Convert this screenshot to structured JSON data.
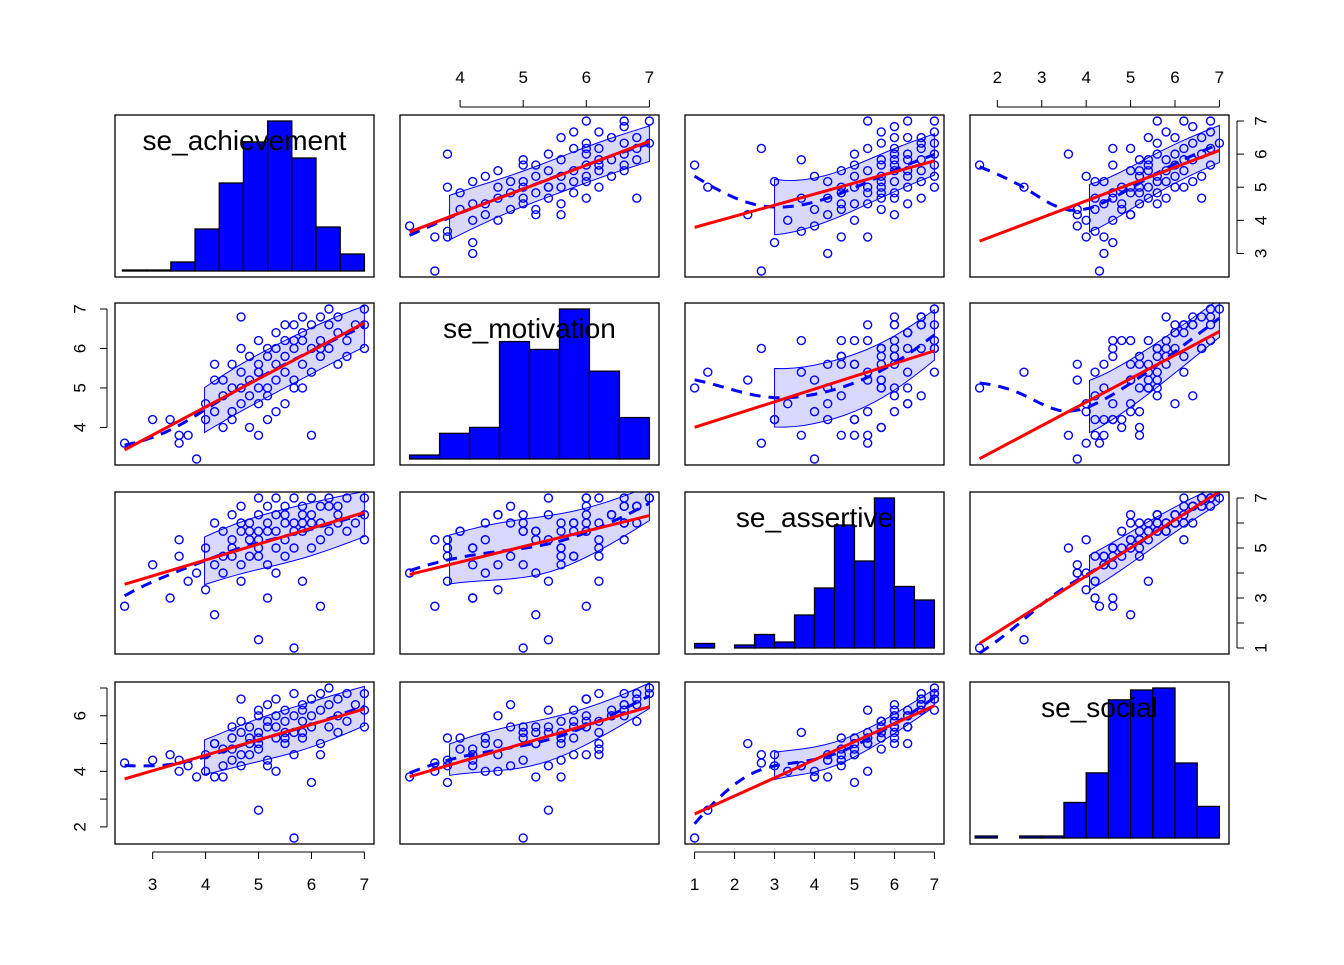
{
  "chart_data": {
    "type": "scatter",
    "title": "",
    "variables": [
      {
        "name": "se_achievement",
        "range": [
          2.47,
          7.0
        ]
      },
      {
        "name": "se_motivation",
        "range": [
          3.2,
          7.0
        ]
      },
      {
        "name": "se_assertive",
        "range": [
          1.0,
          7.0
        ]
      },
      {
        "name": "se_social",
        "range": [
          1.6,
          7.0
        ]
      }
    ],
    "axes": {
      "top": [
        {
          "col": 1,
          "ticks": [
            4,
            5,
            6,
            7
          ],
          "labels": [
            "4",
            "5",
            "6",
            "7"
          ]
        },
        {
          "col": 3,
          "ticks": [
            2,
            3,
            4,
            5,
            6,
            7
          ],
          "labels": [
            "2",
            "3",
            "4",
            "5",
            "6",
            "7"
          ]
        }
      ],
      "bottom": [
        {
          "col": 0,
          "ticks": [
            3,
            4,
            5,
            6,
            7
          ],
          "labels": [
            "3",
            "4",
            "5",
            "6",
            "7"
          ]
        },
        {
          "col": 2,
          "ticks": [
            1,
            2,
            3,
            4,
            5,
            6,
            7
          ],
          "labels": [
            "1",
            "2",
            "3",
            "4",
            "5",
            "6",
            "7"
          ]
        }
      ],
      "left": [
        {
          "row": 1,
          "ticks": [
            4,
            5,
            6,
            7
          ],
          "labels": [
            "4",
            "5",
            "6",
            "7"
          ]
        },
        {
          "row": 3,
          "ticks": [
            2,
            3,
            4,
            5,
            6,
            7
          ],
          "labels": [
            "2",
            "",
            "4",
            "",
            "6",
            ""
          ]
        }
      ],
      "right": [
        {
          "row": 0,
          "ticks": [
            3,
            4,
            5,
            6,
            7
          ],
          "labels": [
            "3",
            "4",
            "5",
            "6",
            "7"
          ]
        },
        {
          "row": 2,
          "ticks": [
            1,
            2,
            3,
            4,
            5,
            6,
            7
          ],
          "labels": [
            "1",
            "",
            "3",
            "",
            "5",
            "",
            "7"
          ]
        }
      ]
    },
    "histograms": [
      {
        "variable": "se_achievement",
        "edges": [
          2.43,
          7.0
        ],
        "counts": [
          1,
          1,
          9,
          42,
          88,
          129,
          150,
          113,
          44,
          17
        ]
      },
      {
        "variable": "se_motivation",
        "edges": [
          3.2,
          7.0
        ],
        "counts": [
          4,
          26,
          32,
          119,
          111,
          152,
          89,
          42
        ]
      },
      {
        "variable": "se_assertive",
        "edges": [
          1.0,
          7.0
        ],
        "counts": [
          3,
          0,
          2,
          9,
          4,
          22,
          40,
          82,
          58,
          100,
          41,
          32
        ]
      },
      {
        "variable": "se_social",
        "edges": [
          1.5,
          7.0
        ],
        "counts": [
          1,
          0,
          1,
          1,
          18,
          33,
          70,
          75,
          76,
          38,
          16
        ]
      }
    ],
    "fits": {
      "linear": "red solid",
      "smooth": "blue dashed with shaded spread band"
    },
    "colors": {
      "points": "#0000ff",
      "linear": "#ff0000",
      "smooth": "#0000ff",
      "band": "#0000ff",
      "hist": "#0000ff"
    },
    "observations": [
      [
        2.47,
        3.6,
        2.67,
        4.3
      ],
      [
        5.67,
        5.0,
        1.0,
        1.6
      ],
      [
        5.0,
        5.4,
        1.33,
        2.6
      ],
      [
        3.33,
        4.2,
        3.0,
        4.6
      ],
      [
        3.5,
        3.6,
        5.33,
        4.0
      ],
      [
        3.5,
        3.8,
        4.67,
        4.4
      ],
      [
        3.67,
        3.8,
        3.67,
        4.2
      ],
      [
        3.0,
        4.2,
        4.33,
        4.4
      ],
      [
        3.83,
        3.2,
        4.0,
        3.8
      ],
      [
        4.0,
        4.6,
        3.33,
        4.0
      ],
      [
        4.0,
        4.2,
        5.0,
        4.6
      ],
      [
        4.17,
        4.4,
        6.0,
        5.0
      ],
      [
        4.17,
        5.2,
        2.33,
        5.0
      ],
      [
        4.33,
        4.8,
        4.67,
        4.2
      ],
      [
        4.33,
        4.0,
        5.67,
        4.8
      ],
      [
        4.33,
        5.2,
        4.0,
        3.8
      ],
      [
        4.5,
        4.4,
        5.33,
        5.2
      ],
      [
        4.5,
        5.6,
        4.67,
        4.4
      ],
      [
        4.5,
        5.0,
        6.33,
        5.6
      ],
      [
        4.5,
        4.2,
        5.0,
        4.8
      ],
      [
        4.67,
        5.0,
        5.67,
        5.4
      ],
      [
        4.67,
        4.6,
        4.33,
        4.6
      ],
      [
        4.67,
        5.4,
        3.67,
        4.2
      ],
      [
        4.67,
        6.8,
        6.0,
        5.8
      ],
      [
        4.83,
        5.2,
        5.33,
        5.0
      ],
      [
        4.83,
        4.8,
        6.0,
        5.6
      ],
      [
        4.83,
        5.8,
        4.67,
        4.6
      ],
      [
        4.83,
        4.0,
        5.67,
        5.2
      ],
      [
        5.0,
        5.6,
        5.0,
        5.0
      ],
      [
        5.0,
        4.6,
        6.33,
        6.0
      ],
      [
        5.0,
        5.0,
        5.67,
        5.4
      ],
      [
        5.0,
        6.2,
        4.67,
        4.8
      ],
      [
        5.0,
        5.4,
        7.0,
        6.2
      ],
      [
        5.0,
        3.8,
        5.33,
        5.2
      ],
      [
        5.17,
        5.8,
        6.0,
        5.6
      ],
      [
        5.17,
        5.0,
        4.33,
        4.4
      ],
      [
        5.17,
        6.0,
        5.67,
        5.8
      ],
      [
        5.17,
        4.8,
        6.67,
        6.4
      ],
      [
        5.33,
        5.6,
        5.0,
        5.2
      ],
      [
        5.33,
        6.4,
        6.33,
        6.0
      ],
      [
        5.33,
        5.2,
        5.67,
        5.6
      ],
      [
        5.33,
        4.4,
        4.0,
        4.0
      ],
      [
        5.33,
        6.0,
        7.0,
        6.6
      ],
      [
        5.5,
        6.2,
        6.0,
        5.8
      ],
      [
        5.5,
        5.4,
        5.33,
        5.4
      ],
      [
        5.5,
        6.6,
        6.67,
        6.2
      ],
      [
        5.5,
        4.6,
        6.33,
        5.0
      ],
      [
        5.5,
        5.8,
        4.67,
        5.2
      ],
      [
        5.67,
        6.0,
        6.0,
        6.0
      ],
      [
        5.67,
        5.2,
        5.67,
        5.4
      ],
      [
        5.67,
        6.6,
        7.0,
        6.8
      ],
      [
        5.67,
        6.2,
        5.0,
        4.6
      ],
      [
        5.83,
        6.4,
        6.33,
        6.2
      ],
      [
        5.83,
        5.6,
        5.67,
        5.8
      ],
      [
        5.83,
        6.8,
        6.67,
        6.4
      ],
      [
        5.83,
        5.0,
        6.0,
        5.2
      ],
      [
        6.0,
        6.6,
        6.0,
        6.0
      ],
      [
        6.0,
        3.8,
        5.0,
        3.6
      ],
      [
        6.0,
        6.0,
        7.0,
        6.6
      ],
      [
        6.0,
        5.4,
        6.33,
        5.6
      ],
      [
        6.17,
        6.8,
        6.67,
        6.8
      ],
      [
        6.17,
        6.2,
        5.33,
        5.0
      ],
      [
        6.17,
        5.8,
        6.0,
        6.2
      ],
      [
        6.33,
        6.6,
        6.67,
        6.4
      ],
      [
        6.33,
        6.0,
        5.67,
        5.6
      ],
      [
        6.33,
        7.0,
        7.0,
        7.0
      ],
      [
        6.5,
        6.4,
        6.33,
        6.0
      ],
      [
        6.5,
        5.6,
        6.0,
        5.4
      ],
      [
        6.5,
        6.8,
        6.67,
        6.6
      ],
      [
        6.67,
        6.2,
        7.0,
        6.8
      ],
      [
        6.67,
        5.8,
        5.67,
        5.8
      ],
      [
        6.83,
        6.6,
        6.0,
        6.4
      ],
      [
        7.0,
        7.0,
        7.0,
        6.8
      ],
      [
        7.0,
        6.0,
        6.33,
        5.6
      ],
      [
        7.0,
        6.6,
        5.33,
        6.2
      ],
      [
        4.17,
        5.6,
        4.33,
        3.8
      ],
      [
        5.17,
        4.2,
        3.0,
        4.2
      ],
      [
        6.17,
        6.0,
        2.67,
        4.6
      ],
      [
        4.67,
        6.0,
        6.67,
        6.6
      ],
      [
        5.83,
        6.2,
        3.67,
        5.4
      ]
    ]
  }
}
